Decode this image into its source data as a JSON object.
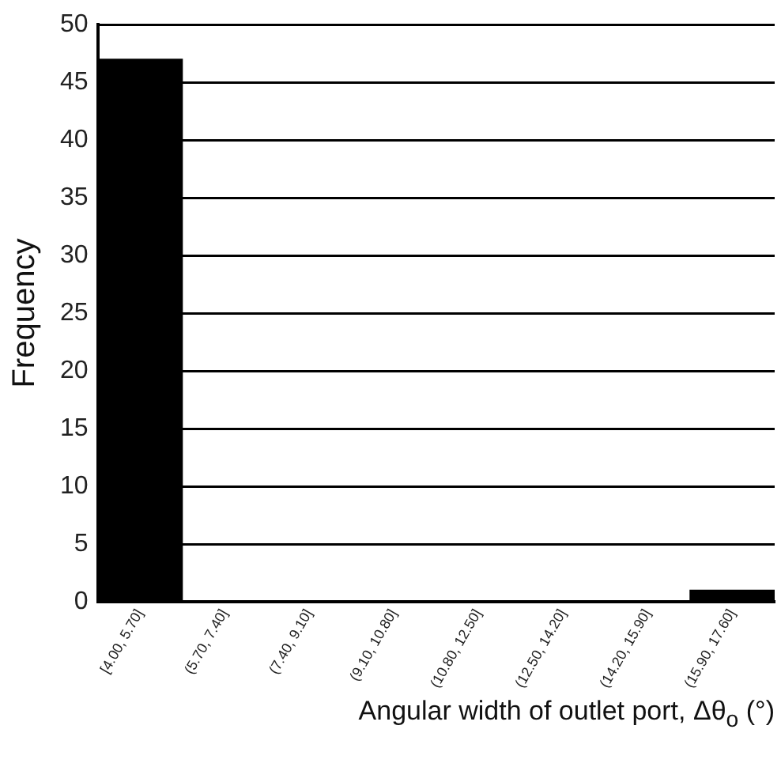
{
  "chart_data": {
    "type": "bar",
    "xlabel": "Angular width of outlet port, Δθ$_{o}$ (°)",
    "ylabel": "Frequency",
    "categories": [
      "[4.00, 5.70]",
      "(5.70, 7.40]",
      "(7.40, 9.10]",
      "(9.10, 10.80]",
      "(10.80, 12.50]",
      "(12.50, 14.20]",
      "(14.20, 15.90]",
      "(15.90, 17.60]"
    ],
    "values": [
      47,
      0,
      0,
      0,
      0,
      0,
      0,
      1
    ],
    "color": "#000000",
    "ylim": [
      0,
      50
    ],
    "yticks": [
      0,
      5,
      10,
      15,
      20,
      25,
      30,
      35,
      40,
      45,
      50
    ],
    "grid": "y",
    "legend": false
  }
}
